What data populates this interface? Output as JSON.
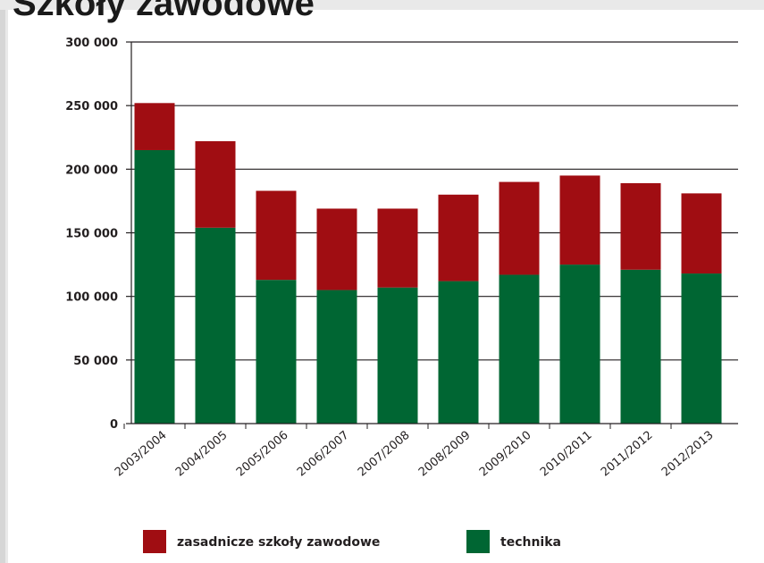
{
  "page": {
    "title": "Szkoły zawodowe"
  },
  "chart_data": {
    "type": "bar",
    "stacked": true,
    "categories": [
      "2003/2004",
      "2004/2005",
      "2005/2006",
      "2006/2007",
      "2007/2008",
      "2008/2009",
      "2009/2010",
      "2010/2011",
      "2011/2012",
      "2012/2013"
    ],
    "series": [
      {
        "name": "technika",
        "color": "#006633",
        "values": [
          215000,
          154000,
          113000,
          105000,
          107000,
          112000,
          117000,
          125000,
          121000,
          118000
        ]
      },
      {
        "name": "zasadnicze szkoły zawodowe",
        "color": "#a00d12",
        "values": [
          37000,
          68000,
          70000,
          64000,
          62000,
          68000,
          73000,
          70000,
          68000,
          63000
        ]
      }
    ],
    "ylim": [
      0,
      300000
    ],
    "yticks": [
      0,
      50000,
      100000,
      150000,
      200000,
      250000,
      300000
    ],
    "ytick_labels": [
      "0",
      "50 000",
      "100 000",
      "150 000",
      "200 000",
      "250 000",
      "300 000"
    ],
    "grid": true,
    "legend_position": "bottom",
    "legend": [
      "zasadnicze szkoły zawodowe",
      "technika"
    ]
  }
}
